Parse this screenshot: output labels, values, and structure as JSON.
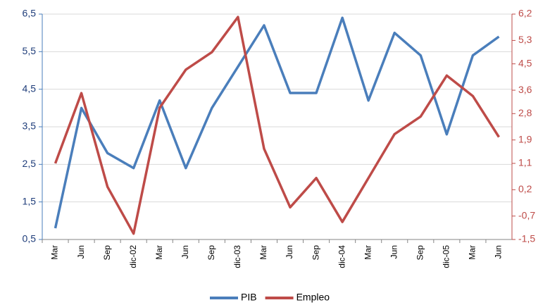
{
  "chart_data": {
    "type": "line",
    "categories": [
      "Mar",
      "Jun",
      "Sep",
      "dic-02",
      "Mar",
      "Jun",
      "Sep",
      "dic-03",
      "Mar",
      "Jun",
      "Sep",
      "dic-04",
      "Mar",
      "Jun",
      "Sep",
      "dic-05",
      "Mar",
      "Jun"
    ],
    "series": [
      {
        "name": "PIB",
        "color": "#4a7ebb",
        "values": [
          0.8,
          4.0,
          2.8,
          2.4,
          4.2,
          2.4,
          4.0,
          5.1,
          6.2,
          4.4,
          4.4,
          6.4,
          4.2,
          6.0,
          5.4,
          3.3,
          5.4,
          5.9
        ]
      },
      {
        "name": "Empleo",
        "color": "#be4b48",
        "axis": "y2",
        "values": [
          1.1,
          3.5,
          0.3,
          -1.3,
          3.0,
          4.3,
          4.9,
          6.1,
          1.6,
          -0.4,
          0.6,
          -0.9,
          0.6,
          2.1,
          2.7,
          4.1,
          3.4,
          2.0
        ]
      }
    ],
    "ylim": [
      0.5,
      6.5
    ],
    "yticks": [
      {
        "value": 0.5,
        "label": "0,5"
      },
      {
        "value": 1.5,
        "label": "1,5"
      },
      {
        "value": 2.5,
        "label": "2,5"
      },
      {
        "value": 3.5,
        "label": "3,5"
      },
      {
        "value": 4.5,
        "label": "4,5"
      },
      {
        "value": 5.5,
        "label": "5,5"
      },
      {
        "value": 6.5,
        "label": "6,5"
      }
    ],
    "y2lim": [
      -1.5,
      6.2
    ],
    "y2ticks": [
      {
        "value": -1.5,
        "label": "-1,5"
      },
      {
        "value": -0.7,
        "label": "-0,7"
      },
      {
        "value": 0.2,
        "label": "0,2"
      },
      {
        "value": 1.1,
        "label": "1,1"
      },
      {
        "value": 1.9,
        "label": "1,9"
      },
      {
        "value": 2.8,
        "label": "2,8"
      },
      {
        "value": 3.6,
        "label": "3,6"
      },
      {
        "value": 4.5,
        "label": "4,5"
      },
      {
        "value": 5.3,
        "label": "5,3"
      },
      {
        "value": 6.2,
        "label": "6,2"
      }
    ],
    "grid": true,
    "legend": "bottom"
  }
}
